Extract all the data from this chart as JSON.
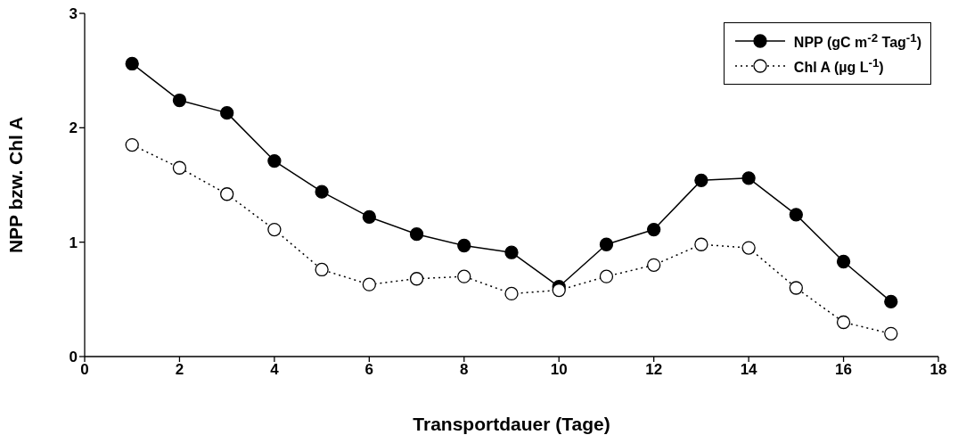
{
  "chart_data": {
    "type": "line",
    "xlabel": "Transportdauer (Tage)",
    "ylabel": "NPP bzw. Chl A",
    "x": [
      1,
      2,
      3,
      4,
      5,
      6,
      7,
      8,
      9,
      10,
      11,
      12,
      13,
      14,
      15,
      16,
      17
    ],
    "series": [
      {
        "name": "NPP (gC m$^{-2}$ Tag$^{-1}$)",
        "color": "#000000",
        "marker": "circle",
        "line_style": "solid",
        "values": [
          2.56,
          2.24,
          2.13,
          1.71,
          1.44,
          1.22,
          1.07,
          0.97,
          0.91,
          0.61,
          0.98,
          1.11,
          1.54,
          1.56,
          1.24,
          0.83,
          0.48
        ]
      },
      {
        "name": "Chl A (µg L$^{-1}$)",
        "color": "#000000",
        "marker": "circle",
        "line_style": "dotted",
        "values": [
          1.85,
          1.65,
          1.42,
          1.11,
          0.76,
          0.63,
          0.68,
          0.7,
          0.55,
          0.58,
          0.7,
          0.8,
          0.98,
          0.95,
          0.6,
          0.3,
          0.2
        ]
      }
    ],
    "xlim": [
      0,
      18
    ],
    "xticks": [
      0,
      2,
      4,
      6,
      8,
      10,
      12,
      14,
      16,
      18
    ],
    "ylim": [
      0,
      3
    ],
    "yticks": [
      0,
      1,
      2,
      3
    ],
    "grid": false,
    "legend": "top right"
  }
}
